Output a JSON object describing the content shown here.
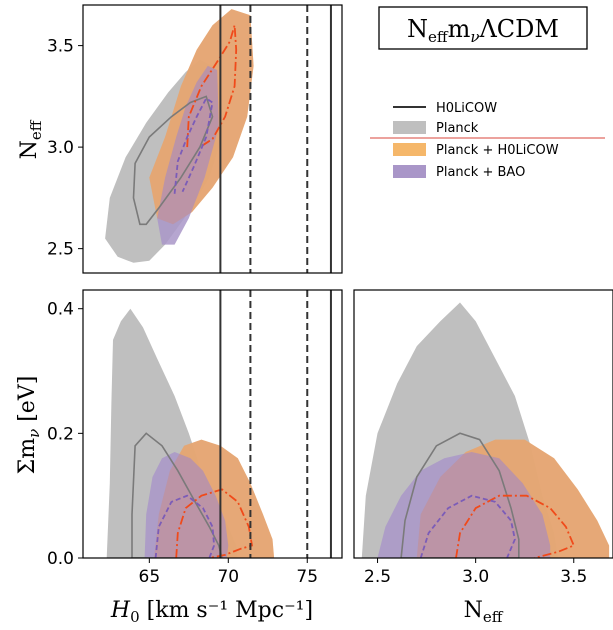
{
  "title": "N_eff m_ν ΛCDM",
  "title_parts": {
    "main": "N",
    "sub1": "eff",
    "mid": "m",
    "sub2": "ν",
    "tail": "ΛCDM"
  },
  "legend": [
    {
      "label": "H0LiCOW",
      "kind": "line",
      "color": "#333333"
    },
    {
      "label": "Planck",
      "kind": "patch",
      "color": "#bfbfbf"
    },
    {
      "label": "Planck + H0LiCOW",
      "kind": "patch",
      "color": "#f5b76a"
    },
    {
      "label": "Planck + BAO",
      "kind": "patch",
      "color": "#a996c8"
    }
  ],
  "axes": {
    "h0_label_main": "H",
    "h0_label_sub": "0",
    "h0_label_units": " [km s⁻¹ Mpc⁻¹]",
    "neff_label_main": "N",
    "neff_label_sub": "eff",
    "mnu_label": "Σm",
    "mnu_label_sub": "ν",
    "mnu_label_units": " [eV]"
  },
  "chart_data": {
    "type": "contour-triangle",
    "colors": {
      "planck": "#bfbfbf",
      "planck_h0licow": "#f5b76a",
      "planck_bao": "#a996c8",
      "overlap": "#c98880",
      "h0licow_line": "#333333",
      "dashdot": "#f04a1a",
      "dashed_bao": "#7b5cb8",
      "planck_inner": "#7a7a7a"
    },
    "panels": [
      {
        "id": "neff_vs_h0",
        "xlim": [
          60.8,
          77.2
        ],
        "ylim": [
          2.38,
          3.7
        ],
        "xticks": [],
        "yticks": [
          2.5,
          3.0,
          3.5
        ],
        "ytick_labels": [
          "2.5",
          "3.0",
          "3.5"
        ],
        "vlines_solid": [
          69.5,
          76.5
        ],
        "vlines_dashed": [
          71.4,
          75.0
        ],
        "regions": {
          "planck": [
            [
              62.2,
              2.55
            ],
            [
              62.5,
              2.75
            ],
            [
              63.5,
              2.95
            ],
            [
              64.8,
              3.12
            ],
            [
              66.2,
              3.27
            ],
            [
              67.3,
              3.37
            ],
            [
              68.2,
              3.43
            ],
            [
              69.0,
              3.4
            ],
            [
              69.6,
              3.25
            ],
            [
              69.6,
              3.05
            ],
            [
              68.8,
              2.85
            ],
            [
              67.5,
              2.68
            ],
            [
              66.0,
              2.52
            ],
            [
              65.0,
              2.44
            ],
            [
              64.0,
              2.43
            ],
            [
              63.0,
              2.46
            ]
          ],
          "h0licow": [
            [
              65.0,
              2.85
            ],
            [
              66.0,
              3.05
            ],
            [
              67.0,
              3.3
            ],
            [
              68.0,
              3.48
            ],
            [
              69.0,
              3.6
            ],
            [
              70.2,
              3.68
            ],
            [
              71.4,
              3.65
            ],
            [
              71.6,
              3.4
            ],
            [
              71.2,
              3.15
            ],
            [
              70.3,
              2.95
            ],
            [
              69.0,
              2.8
            ],
            [
              67.7,
              2.68
            ],
            [
              66.5,
              2.62
            ],
            [
              65.5,
              2.65
            ]
          ],
          "bao": [
            [
              65.5,
              2.65
            ],
            [
              66.0,
              2.85
            ],
            [
              66.7,
              3.05
            ],
            [
              67.3,
              3.2
            ],
            [
              68.0,
              3.32
            ],
            [
              68.7,
              3.4
            ],
            [
              69.3,
              3.38
            ],
            [
              69.4,
              3.1
            ],
            [
              68.5,
              2.85
            ],
            [
              67.5,
              2.65
            ],
            [
              66.6,
              2.52
            ],
            [
              65.8,
              2.52
            ]
          ]
        },
        "lines": {
          "planck_inner": [
            [
              64.4,
              2.62
            ],
            [
              64.0,
              2.75
            ],
            [
              64.1,
              2.92
            ],
            [
              65.0,
              3.05
            ],
            [
              66.4,
              3.15
            ],
            [
              67.6,
              3.22
            ],
            [
              68.6,
              3.25
            ],
            [
              69.0,
              3.15
            ],
            [
              68.2,
              3.0
            ],
            [
              67.0,
              2.85
            ],
            [
              65.6,
              2.7
            ],
            [
              64.8,
              2.62
            ]
          ],
          "dashdot": [
            [
              67.4,
              3.0
            ],
            [
              67.5,
              3.15
            ],
            [
              68.3,
              3.3
            ],
            [
              69.3,
              3.42
            ],
            [
              70.1,
              3.52
            ],
            [
              70.4,
              3.6
            ],
            [
              70.5,
              3.48
            ],
            [
              70.4,
              3.3
            ],
            [
              69.8,
              3.15
            ],
            [
              69.0,
              3.04
            ],
            [
              68.2,
              3.0
            ]
          ],
          "dashed_bao": [
            [
              66.6,
              2.77
            ],
            [
              66.8,
              2.93
            ],
            [
              67.4,
              3.05
            ],
            [
              68.0,
              3.15
            ],
            [
              68.6,
              3.24
            ],
            [
              69.0,
              3.22
            ],
            [
              68.6,
              3.05
            ],
            [
              67.8,
              2.9
            ],
            [
              67.1,
              2.78
            ]
          ]
        }
      },
      {
        "id": "mnu_vs_h0",
        "xlim": [
          60.8,
          77.2
        ],
        "ylim": [
          0.0,
          0.43
        ],
        "xticks": [
          65,
          70,
          75
        ],
        "xtick_labels": [
          "65",
          "70",
          "75"
        ],
        "yticks": [
          0.0,
          0.2,
          0.4
        ],
        "ytick_labels": [
          "0.0",
          "0.2",
          "0.4"
        ],
        "vlines_solid": [
          69.5,
          76.5
        ],
        "vlines_dashed": [
          71.4,
          75.0
        ],
        "regions": {
          "planck": [
            [
              62.3,
              0.0
            ],
            [
              62.5,
              0.12
            ],
            [
              62.6,
              0.25
            ],
            [
              62.7,
              0.35
            ],
            [
              63.2,
              0.38
            ],
            [
              63.8,
              0.4
            ],
            [
              64.6,
              0.37
            ],
            [
              65.5,
              0.32
            ],
            [
              66.6,
              0.26
            ],
            [
              67.5,
              0.2
            ],
            [
              68.3,
              0.14
            ],
            [
              69.2,
              0.09
            ],
            [
              70.0,
              0.05
            ],
            [
              70.5,
              0.02
            ],
            [
              70.6,
              0.0
            ]
          ],
          "h0licow": [
            [
              65.3,
              0.0
            ],
            [
              65.6,
              0.07
            ],
            [
              66.3,
              0.14
            ],
            [
              67.2,
              0.18
            ],
            [
              68.3,
              0.19
            ],
            [
              69.5,
              0.18
            ],
            [
              70.6,
              0.16
            ],
            [
              71.4,
              0.12
            ],
            [
              72.2,
              0.07
            ],
            [
              72.8,
              0.03
            ],
            [
              72.9,
              0.0
            ]
          ],
          "bao": [
            [
              64.7,
              0.0
            ],
            [
              64.8,
              0.07
            ],
            [
              65.2,
              0.13
            ],
            [
              65.8,
              0.16
            ],
            [
              66.6,
              0.17
            ],
            [
              67.6,
              0.16
            ],
            [
              68.4,
              0.14
            ],
            [
              69.2,
              0.1
            ],
            [
              69.8,
              0.06
            ],
            [
              70.0,
              0.02
            ],
            [
              69.9,
              0.0
            ]
          ]
        },
        "lines": {
          "planck_inner": [
            [
              63.9,
              0.0
            ],
            [
              63.9,
              0.07
            ],
            [
              64.1,
              0.18
            ],
            [
              64.8,
              0.2
            ],
            [
              65.8,
              0.18
            ],
            [
              66.8,
              0.14
            ],
            [
              67.9,
              0.09
            ],
            [
              68.8,
              0.05
            ],
            [
              69.4,
              0.02
            ],
            [
              69.6,
              0.0
            ]
          ],
          "dashdot": [
            [
              66.7,
              0.0
            ],
            [
              66.8,
              0.04
            ],
            [
              67.3,
              0.08
            ],
            [
              68.3,
              0.1
            ],
            [
              69.6,
              0.11
            ],
            [
              70.6,
              0.09
            ],
            [
              71.3,
              0.05
            ],
            [
              71.5,
              0.02
            ],
            [
              70.8,
              0.015
            ],
            [
              69.8,
              0.005
            ],
            [
              68.8,
              0.0
            ]
          ],
          "dashed_bao": [
            [
              65.4,
              0.0
            ],
            [
              65.6,
              0.05
            ],
            [
              66.4,
              0.09
            ],
            [
              67.4,
              0.1
            ],
            [
              68.4,
              0.08
            ],
            [
              69.0,
              0.05
            ],
            [
              69.1,
              0.02
            ],
            [
              68.8,
              0.0
            ]
          ]
        }
      },
      {
        "id": "mnu_vs_neff",
        "xlim": [
          2.38,
          3.7
        ],
        "ylim": [
          0.0,
          0.43
        ],
        "xticks": [
          2.5,
          3.0,
          3.5
        ],
        "xtick_labels": [
          "2.5",
          "3.0",
          "3.5"
        ],
        "yticks": [],
        "regions": {
          "planck": [
            [
              2.42,
              0.0
            ],
            [
              2.44,
              0.1
            ],
            [
              2.5,
              0.2
            ],
            [
              2.6,
              0.28
            ],
            [
              2.7,
              0.34
            ],
            [
              2.82,
              0.38
            ],
            [
              2.92,
              0.41
            ],
            [
              3.0,
              0.38
            ],
            [
              3.1,
              0.32
            ],
            [
              3.2,
              0.26
            ],
            [
              3.28,
              0.18
            ],
            [
              3.34,
              0.1
            ],
            [
              3.4,
              0.04
            ],
            [
              3.42,
              0.0
            ]
          ],
          "h0licow": [
            [
              2.7,
              0.0
            ],
            [
              2.72,
              0.07
            ],
            [
              2.82,
              0.13
            ],
            [
              2.95,
              0.17
            ],
            [
              3.1,
              0.19
            ],
            [
              3.25,
              0.19
            ],
            [
              3.4,
              0.16
            ],
            [
              3.52,
              0.11
            ],
            [
              3.62,
              0.06
            ],
            [
              3.68,
              0.02
            ],
            [
              3.68,
              0.0
            ]
          ],
          "bao": [
            [
              2.5,
              0.0
            ],
            [
              2.54,
              0.05
            ],
            [
              2.62,
              0.1
            ],
            [
              2.72,
              0.14
            ],
            [
              2.84,
              0.16
            ],
            [
              2.98,
              0.17
            ],
            [
              3.12,
              0.16
            ],
            [
              3.24,
              0.12
            ],
            [
              3.34,
              0.07
            ],
            [
              3.38,
              0.02
            ],
            [
              3.38,
              0.0
            ]
          ]
        },
        "lines": {
          "planck_inner": [
            [
              2.62,
              0.0
            ],
            [
              2.64,
              0.06
            ],
            [
              2.7,
              0.13
            ],
            [
              2.8,
              0.18
            ],
            [
              2.92,
              0.2
            ],
            [
              3.02,
              0.19
            ],
            [
              3.12,
              0.14
            ],
            [
              3.18,
              0.08
            ],
            [
              3.22,
              0.03
            ],
            [
              3.22,
              0.0
            ]
          ],
          "dashdot": [
            [
              2.9,
              0.0
            ],
            [
              2.92,
              0.04
            ],
            [
              3.0,
              0.08
            ],
            [
              3.12,
              0.1
            ],
            [
              3.26,
              0.1
            ],
            [
              3.38,
              0.08
            ],
            [
              3.46,
              0.05
            ],
            [
              3.5,
              0.02
            ],
            [
              3.42,
              0.01
            ],
            [
              3.3,
              0.0
            ]
          ],
          "dashed_bao": [
            [
              2.72,
              0.0
            ],
            [
              2.76,
              0.04
            ],
            [
              2.86,
              0.08
            ],
            [
              2.98,
              0.1
            ],
            [
              3.1,
              0.09
            ],
            [
              3.18,
              0.06
            ],
            [
              3.2,
              0.03
            ],
            [
              3.16,
              0.0
            ]
          ]
        }
      }
    ]
  }
}
